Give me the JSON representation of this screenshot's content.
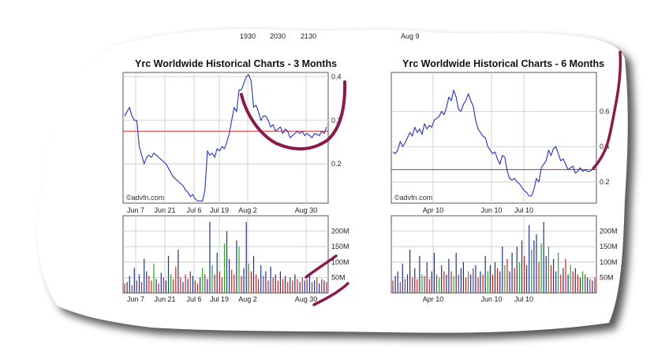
{
  "header": {
    "fragments": [
      "1930",
      "2030",
      "2130"
    ],
    "right_fragment": "Aug 9"
  },
  "colors": {
    "price_line": "#2233bb",
    "ref_line": "#cc2222",
    "vol_green": "#22aa22",
    "vol_red": "#cc2222",
    "vol_blue": "#223388",
    "annotation": "#8b1a4a",
    "grid": "#c8c8c8",
    "frame": "#555555",
    "shadow": "#222222"
  },
  "chart_data": [
    {
      "type": "line",
      "title": "Yrc Worldwide Historical Charts - 3 Months",
      "watermark": "©advfn.com",
      "x_tick_labels": [
        "Jun 7",
        "Jun 21",
        "Jul 6",
        "Jul 19",
        "Aug 2",
        "Aug 30"
      ],
      "y_tick_labels": [
        "0.4",
        "0.3",
        "0.2"
      ],
      "ylim": [
        0.11,
        0.41
      ],
      "reference_line": 0.275,
      "grid": true,
      "y": [
        0.31,
        0.32,
        0.33,
        0.31,
        0.3,
        0.3,
        0.24,
        0.22,
        0.2,
        0.215,
        0.22,
        0.215,
        0.225,
        0.22,
        0.215,
        0.21,
        0.205,
        0.2,
        0.19,
        0.18,
        0.17,
        0.165,
        0.16,
        0.155,
        0.15,
        0.14,
        0.135,
        0.125,
        0.13,
        0.12,
        0.115,
        0.115,
        0.115,
        0.14,
        0.23,
        0.22,
        0.225,
        0.215,
        0.235,
        0.23,
        0.24,
        0.235,
        0.25,
        0.27,
        0.3,
        0.33,
        0.32,
        0.37,
        0.37,
        0.385,
        0.4,
        0.405,
        0.39,
        0.33,
        0.335,
        0.32,
        0.3,
        0.31,
        0.31,
        0.3,
        0.285,
        0.29,
        0.275,
        0.28,
        0.285,
        0.27,
        0.28,
        0.275,
        0.26,
        0.265,
        0.27,
        0.275,
        0.27,
        0.275,
        0.265,
        0.27,
        0.265,
        0.26,
        0.27,
        0.268,
        0.265,
        0.275,
        0.27,
        0.285
      ],
      "volume": {
        "y_tick_labels": [
          "200M",
          "150M",
          "100M",
          "50M"
        ],
        "ylim": [
          0,
          250
        ],
        "values": [
          30,
          35,
          55,
          25,
          80,
          40,
          60,
          35,
          110,
          70,
          55,
          40,
          95,
          45,
          30,
          65,
          50,
          40,
          120,
          60,
          45,
          85,
          140,
          50,
          35,
          60,
          45,
          70,
          55,
          40,
          30,
          50,
          80,
          60,
          45,
          230,
          90,
          60,
          130,
          70,
          50,
          160,
          200,
          110,
          75,
          60,
          170,
          150,
          55,
          80,
          230,
          95,
          70,
          120,
          60,
          45,
          90,
          55,
          70,
          40,
          85,
          50,
          60,
          40,
          70,
          45,
          55,
          35,
          50,
          40,
          60,
          45,
          35,
          50,
          40,
          45,
          55,
          35,
          40,
          50,
          30,
          45,
          40,
          35
        ],
        "colors": [
          "r",
          "b",
          "b",
          "r",
          "b",
          "r",
          "b",
          "r",
          "b",
          "b",
          "r",
          "r",
          "g",
          "b",
          "r",
          "b",
          "r",
          "b",
          "b",
          "g",
          "r",
          "r",
          "b",
          "r",
          "b",
          "r",
          "b",
          "r",
          "b",
          "r",
          "r",
          "b",
          "g",
          "r",
          "b",
          "b",
          "g",
          "r",
          "b",
          "r",
          "r",
          "g",
          "b",
          "b",
          "r",
          "r",
          "b",
          "g",
          "r",
          "b",
          "b",
          "g",
          "r",
          "b",
          "r",
          "r",
          "b",
          "r",
          "b",
          "r",
          "b",
          "r",
          "b",
          "r",
          "b",
          "r",
          "b",
          "r",
          "b",
          "r",
          "b",
          "r",
          "b",
          "r",
          "b",
          "r",
          "b",
          "r",
          "b",
          "r",
          "b",
          "r",
          "b",
          "r"
        ]
      }
    },
    {
      "type": "line",
      "title": "Yrc Worldwide Historical Charts - 6 Months",
      "watermark": "©advfn.com",
      "x_tick_labels": [
        "Apr 10",
        "Jun 10",
        "Jul 10"
      ],
      "y_tick_labels": [
        "0.6",
        "0.4",
        "0.2"
      ],
      "ylim": [
        0.08,
        0.82
      ],
      "reference_line": 0.27,
      "grid": true,
      "y": [
        0.37,
        0.36,
        0.38,
        0.43,
        0.4,
        0.42,
        0.45,
        0.48,
        0.46,
        0.51,
        0.48,
        0.5,
        0.47,
        0.53,
        0.5,
        0.52,
        0.51,
        0.55,
        0.56,
        0.57,
        0.6,
        0.58,
        0.62,
        0.68,
        0.66,
        0.72,
        0.68,
        0.61,
        0.6,
        0.64,
        0.66,
        0.7,
        0.66,
        0.63,
        0.55,
        0.5,
        0.48,
        0.46,
        0.45,
        0.4,
        0.38,
        0.36,
        0.37,
        0.33,
        0.3,
        0.35,
        0.34,
        0.26,
        0.22,
        0.21,
        0.22,
        0.2,
        0.19,
        0.17,
        0.15,
        0.14,
        0.12,
        0.12,
        0.16,
        0.22,
        0.2,
        0.28,
        0.3,
        0.32,
        0.38,
        0.35,
        0.39,
        0.4,
        0.36,
        0.32,
        0.33,
        0.3,
        0.27,
        0.28,
        0.29,
        0.25,
        0.26,
        0.28,
        0.26,
        0.27,
        0.26,
        0.26,
        0.27,
        0.29
      ],
      "volume": {
        "y_tick_labels": [
          "200M",
          "150M",
          "100M",
          "50M"
        ],
        "ylim": [
          0,
          250
        ],
        "values": [
          40,
          55,
          70,
          35,
          95,
          45,
          60,
          140,
          50,
          80,
          45,
          120,
          60,
          55,
          100,
          45,
          70,
          130,
          60,
          50,
          90,
          70,
          60,
          110,
          70,
          55,
          130,
          60,
          80,
          100,
          50,
          70,
          60,
          80,
          90,
          50,
          70,
          60,
          120,
          70,
          90,
          60,
          100,
          80,
          70,
          150,
          90,
          110,
          70,
          130,
          80,
          150,
          100,
          170,
          120,
          90,
          220,
          140,
          170,
          190,
          100,
          160,
          230,
          120,
          150,
          90,
          110,
          70,
          130,
          60,
          80,
          110,
          60,
          90,
          70,
          80,
          60,
          50,
          70,
          60,
          50,
          45,
          40,
          50
        ],
        "colors": [
          "r",
          "b",
          "b",
          "r",
          "b",
          "r",
          "b",
          "b",
          "r",
          "b",
          "r",
          "b",
          "g",
          "r",
          "b",
          "r",
          "b",
          "b",
          "r",
          "g",
          "b",
          "r",
          "b",
          "b",
          "r",
          "g",
          "b",
          "r",
          "b",
          "b",
          "r",
          "g",
          "b",
          "r",
          "b",
          "r",
          "b",
          "r",
          "b",
          "g",
          "b",
          "r",
          "b",
          "r",
          "b",
          "b",
          "g",
          "r",
          "b",
          "b",
          "r",
          "b",
          "g",
          "b",
          "r",
          "b",
          "b",
          "g",
          "b",
          "b",
          "r",
          "g",
          "b",
          "b",
          "g",
          "r",
          "b",
          "b",
          "g",
          "r",
          "b",
          "r",
          "b",
          "g",
          "r",
          "b",
          "r",
          "b",
          "g",
          "r",
          "b",
          "r",
          "b",
          "r"
        ]
      }
    }
  ]
}
